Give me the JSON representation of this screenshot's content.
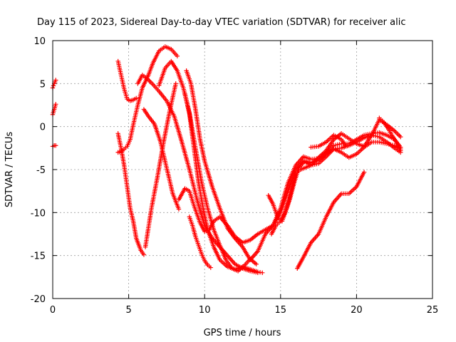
{
  "chart_data": {
    "type": "scatter",
    "title": "Day 115 of 2023, Sidereal Day-to-day VTEC variation (SDTVAR) for receiver alic",
    "xlabel": "GPS time / hours",
    "ylabel": "SDTVAR / TECUs",
    "xlim": [
      0,
      25
    ],
    "ylim": [
      -20,
      10
    ],
    "x_ticks": [
      "0",
      "5",
      "10",
      "15",
      "20",
      "25"
    ],
    "y_ticks": [
      "10",
      "5",
      "0",
      "-5",
      "-10",
      "-15",
      "-20"
    ],
    "grid": true,
    "legend": "none",
    "marker": "plus",
    "color": "#ff0000",
    "series": [
      {
        "x": [
          0.0,
          0.1,
          0.2
        ],
        "y": [
          4.5,
          5.0,
          5.4
        ]
      },
      {
        "x": [
          0.0,
          0.1,
          0.2
        ],
        "y": [
          1.4,
          2.0,
          2.6
        ]
      },
      {
        "x": [
          0.0,
          0.1,
          0.2
        ],
        "y": [
          -2.3,
          -2.2,
          -2.2
        ]
      },
      {
        "x": [
          4.3,
          4.5,
          4.7,
          4.9,
          5.1,
          5.3,
          5.5
        ],
        "y": [
          7.6,
          6.0,
          4.4,
          3.2,
          3.0,
          3.1,
          3.3
        ]
      },
      {
        "x": [
          4.3,
          4.5,
          4.7,
          4.9,
          5.1,
          5.3,
          5.5,
          5.8,
          6.0
        ],
        "y": [
          -0.8,
          -2.5,
          -4.5,
          -7.0,
          -9.5,
          -11.0,
          -13.0,
          -14.4,
          -14.9
        ]
      },
      {
        "x": [
          4.3,
          4.6,
          4.9,
          5.1,
          5.3,
          5.6,
          5.9,
          6.3,
          6.6,
          7.0,
          7.4,
          7.8,
          8.2
        ],
        "y": [
          -3.0,
          -2.8,
          -2.3,
          -1.5,
          0.2,
          2.5,
          4.5,
          6.0,
          7.4,
          8.8,
          9.3,
          9.0,
          8.2
        ]
      },
      {
        "x": [
          5.6,
          5.9,
          6.2,
          6.6,
          7.0,
          7.5,
          8.0,
          8.5,
          9.0,
          9.5,
          10.0,
          10.5,
          11.0,
          11.5,
          12.0,
          12.5,
          13.0,
          13.5
        ],
        "y": [
          5.0,
          6.0,
          5.6,
          4.9,
          4.1,
          3.0,
          1.2,
          -1.8,
          -5.0,
          -8.5,
          -11.5,
          -13.0,
          -14.0,
          -15.0,
          -16.0,
          -16.5,
          -16.8,
          -17.0
        ]
      },
      {
        "x": [
          6.0,
          6.3,
          6.7,
          7.1,
          7.5,
          7.9,
          8.3
        ],
        "y": [
          2.0,
          1.2,
          0.3,
          -1.8,
          -4.8,
          -7.8,
          -9.6
        ]
      },
      {
        "x": [
          6.1,
          6.5,
          6.9,
          7.3,
          7.7,
          8.1
        ],
        "y": [
          -14.0,
          -9.5,
          -5.8,
          -1.8,
          1.8,
          5.0
        ]
      },
      {
        "x": [
          7.0,
          7.4,
          7.8,
          8.2,
          8.6,
          9.0,
          9.4,
          9.8,
          10.2,
          10.6,
          11.0,
          11.4,
          11.8,
          12.2,
          12.6,
          13.0,
          13.4
        ],
        "y": [
          4.8,
          6.8,
          7.6,
          6.5,
          4.5,
          1.6,
          -2.5,
          -6.5,
          -9.5,
          -12.0,
          -13.8,
          -15.5,
          -16.5,
          -16.8,
          -16.2,
          -15.4,
          -16.0
        ]
      },
      {
        "x": [
          8.3,
          8.7,
          9.0,
          9.3,
          9.7,
          10.0,
          10.3,
          10.6,
          11.0,
          11.5,
          12.0,
          12.5,
          13.0,
          13.5,
          14.0,
          14.5,
          15.0,
          15.5,
          16.0,
          16.5,
          17.0,
          17.5,
          18.0,
          18.5,
          19.0,
          19.5,
          20.0,
          20.5,
          21.0,
          21.5,
          22.0,
          22.5,
          22.9
        ],
        "y": [
          -8.5,
          -7.2,
          -7.5,
          -9.2,
          -11.2,
          -12.2,
          -12.0,
          -11.0,
          -10.5,
          -11.5,
          -12.8,
          -13.5,
          -13.2,
          -12.5,
          -12.0,
          -11.5,
          -10.0,
          -7.5,
          -5.0,
          -4.0,
          -4.5,
          -4.3,
          -3.5,
          -2.6,
          -2.5,
          -2.2,
          -1.8,
          -1.3,
          -1.0,
          -1.2,
          -1.8,
          -2.5,
          -3.0
        ]
      },
      {
        "x": [
          8.8,
          9.1,
          9.4,
          9.7,
          10.0,
          10.5,
          11.0,
          11.5,
          12.0,
          12.5,
          13.0,
          13.5,
          14.0,
          14.5,
          15.0,
          15.5,
          16.0,
          16.5,
          17.0,
          17.5,
          18.0,
          18.5,
          19.0,
          19.5,
          20.0,
          20.5,
          21.0,
          21.5,
          22.0,
          22.5,
          22.9
        ],
        "y": [
          6.5,
          5.0,
          2.0,
          -1.5,
          -4.0,
          -7.0,
          -9.5,
          -11.8,
          -13.0,
          -14.0,
          -15.5,
          -14.5,
          -12.5,
          -11.5,
          -9.5,
          -6.5,
          -4.5,
          -3.5,
          -3.8,
          -3.7,
          -3.0,
          -2.2,
          -2.0,
          -2.0,
          -1.5,
          -1.0,
          -0.8,
          -0.7,
          -1.0,
          -1.5,
          -2.4
        ]
      },
      {
        "x": [
          8.7,
          9.0,
          9.3,
          9.6,
          9.9,
          10.2,
          10.6,
          11.0,
          11.5,
          12.0,
          12.5,
          13.0,
          13.5,
          13.8
        ],
        "y": [
          3.8,
          1.5,
          -2.5,
          -6.5,
          -9.5,
          -12.0,
          -14.0,
          -15.5,
          -16.3,
          -16.6,
          -16.3,
          -16.6,
          -16.9,
          -17.0
        ]
      },
      {
        "x": [
          9.0,
          9.2,
          9.4,
          9.6,
          9.8,
          10.0,
          10.2,
          10.4
        ],
        "y": [
          -10.5,
          -11.5,
          -12.8,
          -13.8,
          -14.8,
          -15.6,
          -16.1,
          -16.4
        ]
      },
      {
        "x": [
          14.2,
          14.5,
          14.8,
          15.1,
          15.4,
          15.7,
          16.0,
          16.3,
          16.6,
          17.0,
          17.5,
          18.0,
          18.5,
          19.0,
          19.5,
          20.0,
          20.5,
          21.0,
          21.5,
          22.0,
          22.5,
          22.9
        ],
        "y": [
          -8.0,
          -9.0,
          -10.5,
          -11.0,
          -9.5,
          -7.5,
          -5.5,
          -5.0,
          -4.8,
          -4.5,
          -3.6,
          -2.8,
          -1.5,
          -0.8,
          -1.4,
          -2.0,
          -2.3,
          -1.0,
          0.8,
          0.2,
          -0.5,
          -1.2
        ]
      },
      {
        "x": [
          14.4,
          14.7,
          15.0,
          15.3,
          15.6,
          15.9,
          16.2,
          16.6,
          17.0,
          17.5,
          18.0,
          18.5,
          19.0,
          19.5,
          20.0,
          20.5,
          21.0,
          21.5,
          22.0,
          22.5,
          22.9
        ],
        "y": [
          -12.5,
          -11.5,
          -11.0,
          -10.0,
          -8.5,
          -6.5,
          -4.8,
          -4.0,
          -4.2,
          -3.9,
          -3.2,
          -2.6,
          -3.0,
          -3.6,
          -3.2,
          -2.4,
          -1.8,
          -1.8,
          -2.0,
          -2.2,
          -2.6
        ]
      },
      {
        "x": [
          17.0,
          17.5,
          18.0,
          18.5,
          19.0,
          19.3
        ],
        "y": [
          -2.4,
          -2.3,
          -1.8,
          -1.0,
          -1.5,
          -2.2
        ]
      },
      {
        "x": [
          16.1,
          16.5,
          17.0,
          17.5,
          18.0,
          18.5,
          19.0,
          19.5,
          20.0,
          20.5
        ],
        "y": [
          -16.5,
          -15.2,
          -13.5,
          -12.5,
          -10.5,
          -8.8,
          -7.8,
          -7.8,
          -7.0,
          -5.3
        ]
      },
      {
        "x": [
          21.5,
          21.8,
          22.1,
          22.4,
          22.7,
          22.9
        ],
        "y": [
          1.0,
          0.5,
          -0.3,
          -1.2,
          -2.0,
          -2.8
        ]
      }
    ]
  }
}
